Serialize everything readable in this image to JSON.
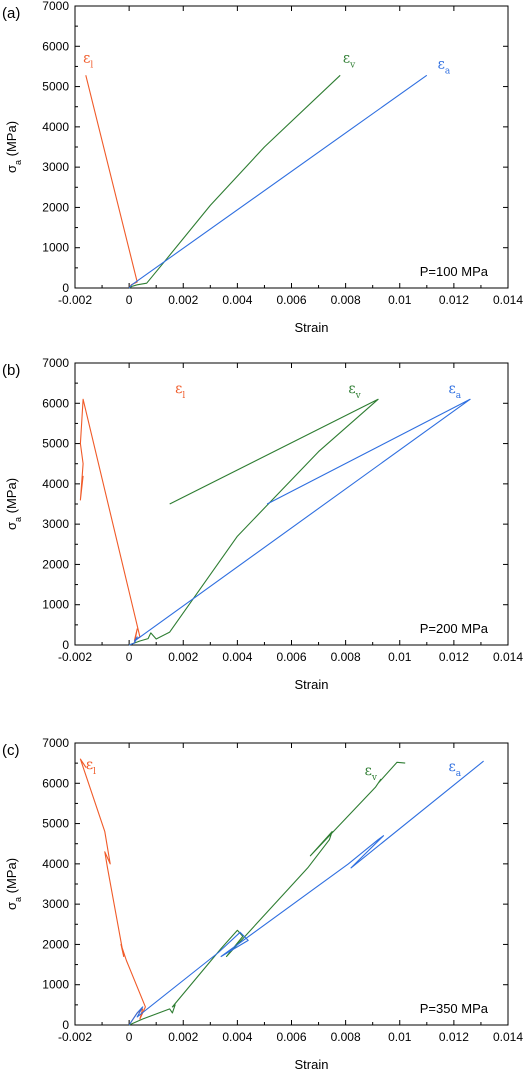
{
  "colors": {
    "lateral": "#f05a28",
    "volumetric": "#2e7d32",
    "axial": "#2f6fe0",
    "axis": "#000000"
  },
  "chart_data": [
    {
      "type": "line",
      "panel_label": "(a)",
      "note": "P=100 MPa",
      "xlabel": "Strain",
      "ylabel": "σ",
      "ylabel_sub": "a",
      "ylabel_unit": "(MPa)",
      "xlim": [
        -0.002,
        0.014
      ],
      "ylim": [
        0,
        7000
      ],
      "xticks": [
        "-0.002",
        "0",
        "0.002",
        "0.004",
        "0.006",
        "0.008",
        "0.01",
        "0.012",
        "0.014"
      ],
      "yticks": [
        "0",
        "1000",
        "2000",
        "3000",
        "4000",
        "5000",
        "6000",
        "7000"
      ],
      "series": [
        {
          "key": "lateral",
          "symbol": "ε",
          "sub": "l",
          "label_at": [
            -0.0017,
            5600
          ],
          "x": [
            0,
            8e-05,
            0.0003,
            -0.0016
          ],
          "y": [
            0,
            80,
            150,
            5280
          ]
        },
        {
          "key": "volumetric",
          "symbol": "ε",
          "sub": "v",
          "label_at": [
            0.0079,
            5600
          ],
          "x": [
            0,
            0.0001,
            0.0003,
            0.00065,
            0.0013,
            0.003,
            0.005,
            0.0078
          ],
          "y": [
            0,
            40,
            80,
            120,
            650,
            2050,
            3500,
            5280
          ]
        },
        {
          "key": "axial",
          "symbol": "ε",
          "sub": "a",
          "label_at": [
            0.0114,
            5450
          ],
          "x": [
            0,
            0.0001,
            0.011
          ],
          "y": [
            0,
            80,
            5280
          ]
        }
      ]
    },
    {
      "type": "line",
      "panel_label": "(b)",
      "note": "P=200 MPa",
      "xlabel": "Strain",
      "ylabel": "σ",
      "ylabel_sub": "a",
      "ylabel_unit": "(MPa)",
      "xlim": [
        -0.002,
        0.014
      ],
      "ylim": [
        0,
        7000
      ],
      "xticks": [
        "-0.002",
        "0",
        "0.002",
        "0.004",
        "0.006",
        "0.008",
        "0.01",
        "0.012",
        "0.014"
      ],
      "yticks": [
        "0",
        "1000",
        "2000",
        "3000",
        "4000",
        "5000",
        "6000",
        "7000"
      ],
      "series": [
        {
          "key": "lateral",
          "symbol": "ε",
          "sub": "l",
          "label_at": [
            0.0017,
            6250
          ],
          "x": [
            0,
            0.0002,
            0.0003,
            0.0002,
            0.0004,
            -0.0017,
            -0.0018,
            -0.0017,
            -0.0018,
            -0.0017
          ],
          "y": [
            0,
            50,
            400,
            120,
            200,
            6100,
            5000,
            4500,
            3600,
            4200
          ]
        },
        {
          "key": "volumetric",
          "symbol": "ε",
          "sub": "v",
          "label_at": [
            0.0081,
            6250
          ],
          "x": [
            0,
            0.0004,
            0.0007,
            0.0008,
            0.001,
            0.0015,
            0.004,
            0.007,
            0.0092,
            0.0015
          ],
          "y": [
            0,
            100,
            160,
            300,
            150,
            320,
            2700,
            4800,
            6100,
            3500
          ]
        },
        {
          "key": "axial",
          "symbol": "ε",
          "sub": "a",
          "label_at": [
            0.0118,
            6250
          ],
          "x": [
            0,
            0.0002,
            0.0003,
            0.0002,
            0.0126,
            0.0051
          ],
          "y": [
            0,
            50,
            200,
            100,
            6100,
            3500
          ]
        }
      ]
    },
    {
      "type": "line",
      "panel_label": "(c)",
      "note": "P=350 MPa",
      "xlabel": "Strain",
      "ylabel": "σ",
      "ylabel_sub": "a",
      "ylabel_unit": "(MPa)",
      "xlim": [
        -0.002,
        0.014
      ],
      "ylim": [
        0,
        7000
      ],
      "xticks": [
        "-0.002",
        "0",
        "0.002",
        "0.004",
        "0.006",
        "0.008",
        "0.01",
        "0.012",
        "0.014"
      ],
      "yticks": [
        "0",
        "1000",
        "2000",
        "3000",
        "4000",
        "5000",
        "6000",
        "7000"
      ],
      "series": [
        {
          "key": "lateral",
          "symbol": "ε",
          "sub": "l",
          "label_at": [
            -0.0016,
            6350
          ],
          "x": [
            0,
            0.0003,
            0.0005,
            0.0004,
            0.0006,
            -0.0001,
            -0.0003,
            -0.0002,
            -0.0008,
            -0.0009,
            -0.0007,
            -0.0009,
            -0.0018,
            -0.0016,
            -0.0017
          ],
          "y": [
            0,
            300,
            400,
            150,
            450,
            1600,
            2000,
            1700,
            3900,
            4300,
            4000,
            4800,
            6600,
            6400,
            6500
          ]
        },
        {
          "key": "volumetric",
          "symbol": "ε",
          "sub": "v",
          "label_at": [
            0.0087,
            6200
          ],
          "x": [
            0,
            0.0005,
            0.0015,
            0.0016,
            0.0017,
            0.0016,
            0.0034,
            0.004,
            0.0042,
            0.0036,
            0.0066,
            0.0074,
            0.0075,
            0.0067,
            0.0091,
            0.0093,
            0.0092,
            0.0099,
            0.0102
          ],
          "y": [
            0,
            150,
            400,
            300,
            500,
            450,
            1900,
            2350,
            2200,
            1700,
            3900,
            4600,
            4800,
            4200,
            5900,
            6100,
            6000,
            6520,
            6500
          ]
        },
        {
          "key": "axial",
          "symbol": "ε",
          "sub": "a",
          "label_at": [
            0.0118,
            6300
          ],
          "x": [
            0,
            0.0003,
            0.0005,
            0.0003,
            0.0033,
            0.0041,
            0.0044,
            0.0034,
            0.0081,
            0.0092,
            0.0094,
            0.0082,
            0.0131
          ],
          "y": [
            0,
            300,
            450,
            200,
            1800,
            2300,
            2100,
            1700,
            4000,
            4600,
            4700,
            3900,
            6550
          ]
        }
      ]
    }
  ]
}
